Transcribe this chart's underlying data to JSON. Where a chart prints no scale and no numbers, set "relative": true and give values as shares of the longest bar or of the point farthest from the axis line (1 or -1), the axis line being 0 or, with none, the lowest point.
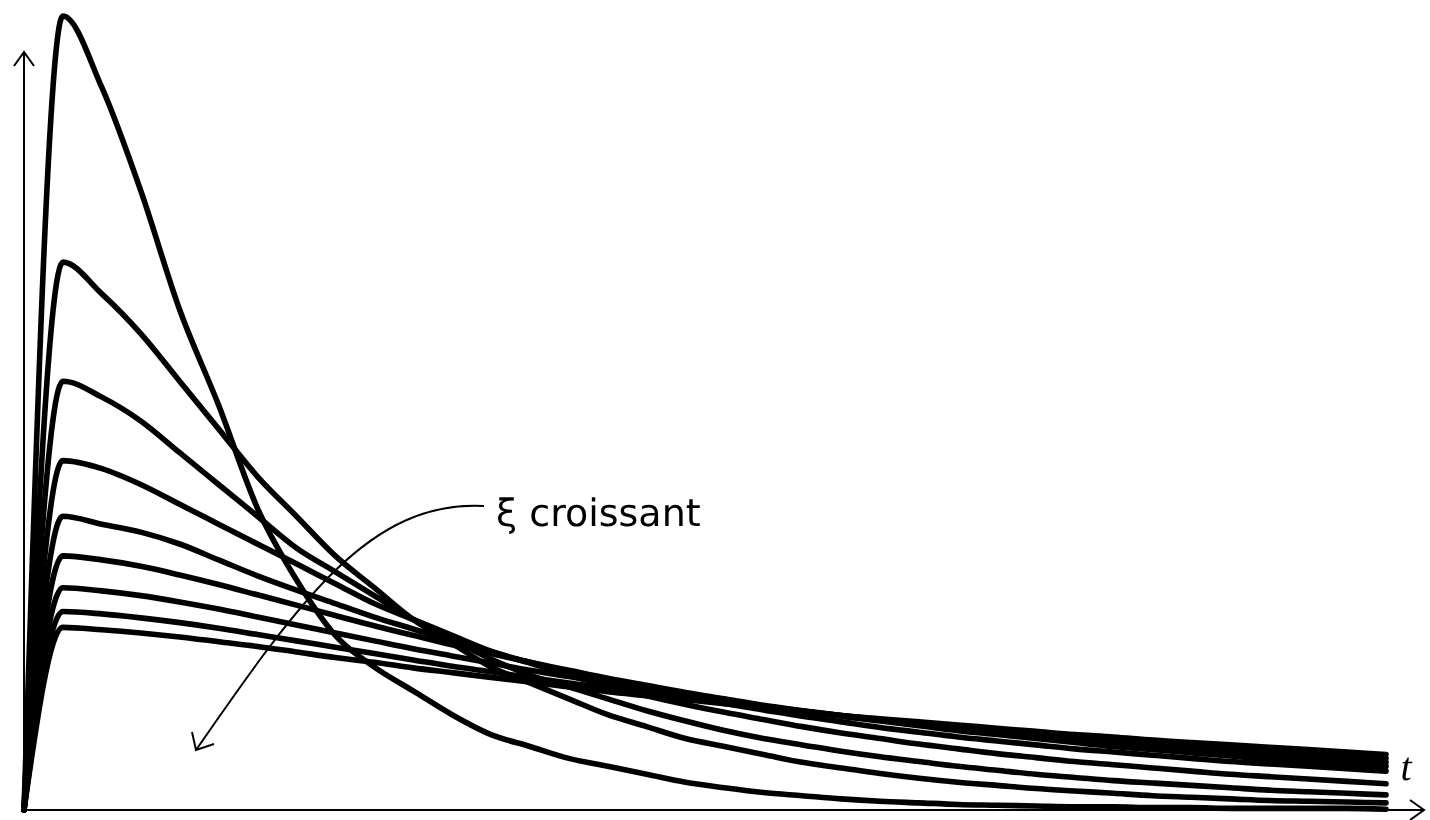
{
  "chart_data": {
    "type": "line",
    "relative": true,
    "xlabel": "t",
    "annotations": [
      "ξ croissant"
    ],
    "categories": [
      null,
      null,
      null,
      null,
      null,
      null,
      null,
      null,
      null,
      null,
      null,
      null,
      null,
      null,
      null,
      null,
      null,
      null,
      null,
      null,
      null,
      null,
      null,
      null,
      null,
      null,
      null,
      null,
      null,
      null,
      null,
      null,
      null,
      null,
      null,
      null
    ],
    "series": [
      {
        "color": "#000000",
        "values": [
          0,
          1.0,
          0.91,
          0.78,
          0.63,
          0.51,
          0.38,
          0.29,
          0.22,
          0.18,
          0.15,
          0.12,
          0.095,
          0.08,
          0.065,
          0.055,
          0.045,
          0.035,
          0.028,
          0.022,
          0.018,
          0.014,
          0.011,
          0.009,
          0.007,
          0.006,
          0.005,
          0.004,
          0.004,
          0.003,
          0.003,
          0.002,
          0.002,
          0.002,
          0.002,
          0.001
        ]
      },
      {
        "color": "#000000",
        "values": [
          0,
          0.69,
          0.65,
          0.6,
          0.54,
          0.48,
          0.42,
          0.37,
          0.32,
          0.28,
          0.24,
          0.21,
          0.18,
          0.16,
          0.14,
          0.12,
          0.105,
          0.09,
          0.08,
          0.07,
          0.06,
          0.053,
          0.046,
          0.04,
          0.035,
          0.031,
          0.027,
          0.024,
          0.021,
          0.018,
          0.016,
          0.014,
          0.012,
          0.011,
          0.01,
          0.009
        ]
      },
      {
        "color": "#000000",
        "values": [
          0,
          0.54,
          0.52,
          0.49,
          0.45,
          0.41,
          0.37,
          0.33,
          0.3,
          0.27,
          0.24,
          0.215,
          0.19,
          0.17,
          0.155,
          0.14,
          0.125,
          0.112,
          0.1,
          0.09,
          0.082,
          0.074,
          0.067,
          0.061,
          0.055,
          0.05,
          0.045,
          0.041,
          0.037,
          0.034,
          0.031,
          0.028,
          0.025,
          0.023,
          0.021,
          0.019
        ]
      },
      {
        "color": "#000000",
        "values": [
          0,
          0.44,
          0.43,
          0.41,
          0.385,
          0.36,
          0.335,
          0.31,
          0.285,
          0.26,
          0.24,
          0.22,
          0.2,
          0.185,
          0.17,
          0.156,
          0.144,
          0.133,
          0.123,
          0.114,
          0.105,
          0.097,
          0.09,
          0.083,
          0.077,
          0.071,
          0.066,
          0.061,
          0.057,
          0.053,
          0.049,
          0.045,
          0.042,
          0.039,
          0.036,
          0.033
        ]
      },
      {
        "color": "#000000",
        "values": [
          0,
          0.37,
          0.36,
          0.35,
          0.335,
          0.315,
          0.295,
          0.277,
          0.26,
          0.243,
          0.228,
          0.213,
          0.199,
          0.186,
          0.174,
          0.163,
          0.153,
          0.143,
          0.134,
          0.126,
          0.118,
          0.111,
          0.104,
          0.098,
          0.092,
          0.087,
          0.082,
          0.077,
          0.073,
          0.069,
          0.065,
          0.061,
          0.058,
          0.055,
          0.052,
          0.049
        ]
      },
      {
        "color": "#000000",
        "values": [
          0,
          0.32,
          0.315,
          0.307,
          0.296,
          0.284,
          0.271,
          0.258,
          0.245,
          0.232,
          0.22,
          0.208,
          0.197,
          0.186,
          0.176,
          0.166,
          0.157,
          0.148,
          0.14,
          0.132,
          0.125,
          0.118,
          0.112,
          0.106,
          0.1,
          0.095,
          0.09,
          0.085,
          0.08,
          0.076,
          0.072,
          0.068,
          0.064,
          0.061,
          0.058,
          0.055
        ]
      },
      {
        "color": "#000000",
        "values": [
          0,
          0.28,
          0.276,
          0.27,
          0.262,
          0.253,
          0.243,
          0.233,
          0.223,
          0.213,
          0.203,
          0.194,
          0.185,
          0.176,
          0.168,
          0.16,
          0.152,
          0.145,
          0.138,
          0.131,
          0.125,
          0.119,
          0.113,
          0.107,
          0.102,
          0.097,
          0.092,
          0.088,
          0.084,
          0.08,
          0.076,
          0.072,
          0.069,
          0.066,
          0.063,
          0.06
        ]
      },
      {
        "color": "#000000",
        "values": [
          0,
          0.25,
          0.247,
          0.242,
          0.236,
          0.229,
          0.221,
          0.213,
          0.205,
          0.197,
          0.189,
          0.181,
          0.174,
          0.167,
          0.16,
          0.153,
          0.147,
          0.141,
          0.135,
          0.129,
          0.124,
          0.119,
          0.114,
          0.109,
          0.104,
          0.1,
          0.096,
          0.092,
          0.088,
          0.084,
          0.08,
          0.077,
          0.074,
          0.071,
          0.068,
          0.065
        ]
      },
      {
        "color": "#000000",
        "values": [
          0,
          0.23,
          0.227,
          0.223,
          0.218,
          0.212,
          0.206,
          0.199,
          0.192,
          0.186,
          0.179,
          0.173,
          0.167,
          0.161,
          0.155,
          0.149,
          0.144,
          0.139,
          0.134,
          0.129,
          0.124,
          0.119,
          0.115,
          0.111,
          0.107,
          0.103,
          0.099,
          0.095,
          0.092,
          0.088,
          0.085,
          0.082,
          0.079,
          0.076,
          0.073,
          0.07
        ]
      }
    ]
  }
}
